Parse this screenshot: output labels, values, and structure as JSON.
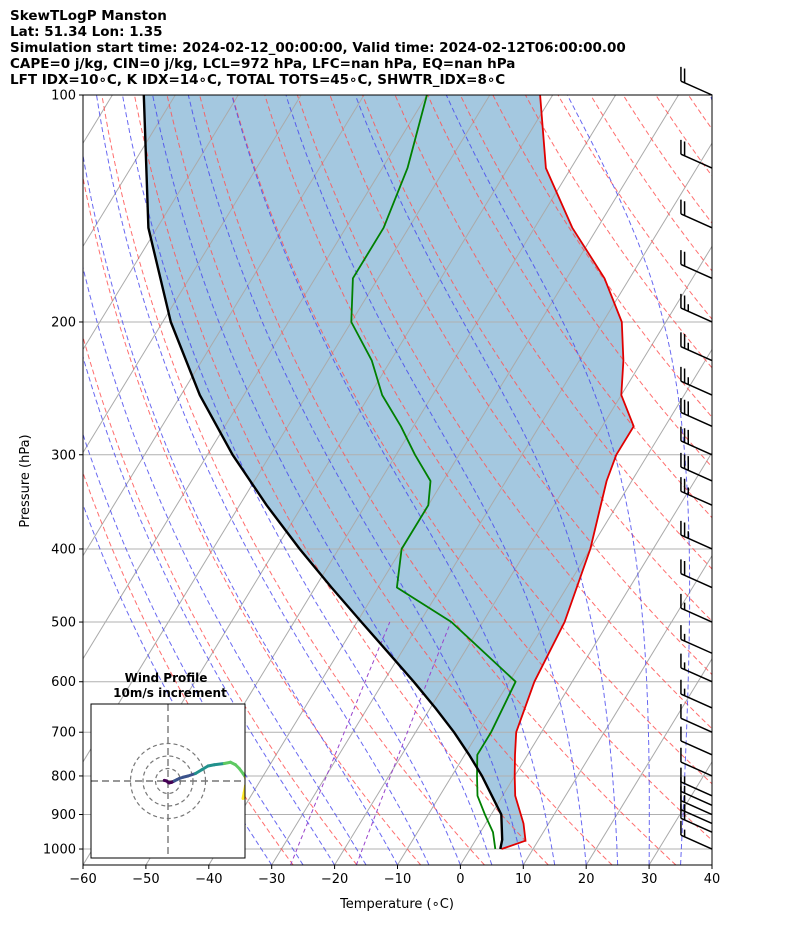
{
  "header": {
    "line1": "SkewTLogP Manston",
    "line2": "Lat: 51.34   Lon: 1.35",
    "line3": "Simulation start time: 2024-02-12_00:00:00, Valid time: 2024-02-12T06:00:00.00",
    "line4": "CAPE=0 j/kg, CIN=0 j/kg, LCL=972 hPa, LFC=nan hPa, EQ=nan hPa",
    "line5": "LFT IDX=10∘C, K IDX=14∘C, TOTAL TOTS=45∘C, SHWTR_IDX=8∘C"
  },
  "chart_data": {
    "type": "line",
    "subtype": "skew-t log-p",
    "xlabel": "Temperature (∘C)",
    "ylabel": "Pressure (hPa)",
    "xlim": [
      -60,
      40
    ],
    "ylim": [
      1050,
      100
    ],
    "y_scale": "log",
    "x_ticks": [
      "−60",
      "−50",
      "−40",
      "−30",
      "−20",
      "−10",
      "0",
      "10",
      "20",
      "30",
      "40"
    ],
    "y_ticks": [
      "100",
      "200",
      "300",
      "400",
      "500",
      "600",
      "700",
      "800",
      "900",
      "1000"
    ],
    "grid": true,
    "series": [
      {
        "role": "temperature",
        "color": "#e00000",
        "points": [
          [
            5,
            1000
          ],
          [
            8,
            975
          ],
          [
            6,
            925
          ],
          [
            2,
            850
          ],
          [
            0,
            800
          ],
          [
            -2,
            750
          ],
          [
            -4,
            700
          ],
          [
            -6,
            600
          ],
          [
            -7,
            500
          ],
          [
            -10,
            400
          ],
          [
            -14,
            325
          ],
          [
            -15,
            300
          ],
          [
            -15,
            275
          ],
          [
            -20,
            250
          ],
          [
            -23,
            225
          ],
          [
            -27,
            200
          ],
          [
            -34,
            175
          ],
          [
            -44,
            150
          ],
          [
            -54,
            125
          ],
          [
            -62,
            100
          ]
        ]
      },
      {
        "role": "dewpoint",
        "color": "#008000",
        "points": [
          [
            4,
            1000
          ],
          [
            2,
            950
          ],
          [
            -1,
            900
          ],
          [
            -4,
            850
          ],
          [
            -6,
            800
          ],
          [
            -8,
            750
          ],
          [
            -8,
            700
          ],
          [
            -9,
            600
          ],
          [
            -25,
            500
          ],
          [
            -37,
            450
          ],
          [
            -40,
            400
          ],
          [
            -40,
            350
          ],
          [
            -42,
            325
          ],
          [
            -47,
            300
          ],
          [
            -52,
            275
          ],
          [
            -58,
            250
          ],
          [
            -63,
            225
          ],
          [
            -70,
            200
          ],
          [
            -74,
            175
          ],
          [
            -74,
            150
          ],
          [
            -76,
            125
          ],
          [
            -80,
            100
          ]
        ]
      },
      {
        "role": "parcel",
        "color": "#000000",
        "points": [
          [
            4.8,
            1000
          ],
          [
            4.2,
            972
          ],
          [
            1.6,
            900
          ],
          [
            -1.7,
            850
          ],
          [
            -5.2,
            800
          ],
          [
            -9.3,
            750
          ],
          [
            -13.9,
            700
          ],
          [
            -19.2,
            650
          ],
          [
            -25.2,
            600
          ],
          [
            -31.9,
            550
          ],
          [
            -39.3,
            500
          ],
          [
            -47.4,
            450
          ],
          [
            -56.2,
            400
          ],
          [
            -65.7,
            350
          ],
          [
            -76.0,
            300
          ],
          [
            -87.0,
            250
          ],
          [
            -98.7,
            200
          ],
          [
            -111.4,
            150
          ],
          [
            -125.0,
            100
          ]
        ]
      }
    ],
    "wind_barbs": [
      {
        "p": 100,
        "kt": 20
      },
      {
        "p": 125,
        "kt": 20
      },
      {
        "p": 150,
        "kt": 20
      },
      {
        "p": 175,
        "kt": 20
      },
      {
        "p": 200,
        "kt": 25
      },
      {
        "p": 225,
        "kt": 25
      },
      {
        "p": 250,
        "kt": 25
      },
      {
        "p": 275,
        "kt": 30
      },
      {
        "p": 300,
        "kt": 30
      },
      {
        "p": 325,
        "kt": 30
      },
      {
        "p": 350,
        "kt": 25
      },
      {
        "p": 400,
        "kt": 25
      },
      {
        "p": 450,
        "kt": 20
      },
      {
        "p": 500,
        "kt": 15
      },
      {
        "p": 550,
        "kt": 15
      },
      {
        "p": 600,
        "kt": 15
      },
      {
        "p": 650,
        "kt": 15
      },
      {
        "p": 700,
        "kt": 10
      },
      {
        "p": 750,
        "kt": 10
      },
      {
        "p": 800,
        "kt": 10
      },
      {
        "p": 850,
        "kt": 15
      },
      {
        "p": 875,
        "kt": 15
      },
      {
        "p": 900,
        "kt": 15
      },
      {
        "p": 925,
        "kt": 15
      },
      {
        "p": 950,
        "kt": 20
      },
      {
        "p": 1000,
        "kt": 15
      }
    ],
    "reference_lines": {
      "isotherms_color": "#aaaaaa",
      "dry_adiabats_color": "#ff5555",
      "moist_adiabats_color": "#4444ee",
      "mixing_ratio_color": "#9944cc",
      "cape_fill_color": "#a4c8e0"
    },
    "inset": {
      "title_line1": "Wind Profile",
      "title_line2": "10m/s increment",
      "type": "hodograph",
      "ring_spacing_mps": 10,
      "points": [
        [
          -3,
          0.5
        ],
        [
          -1,
          0
        ],
        [
          0,
          -1
        ],
        [
          1,
          -1.5
        ],
        [
          3,
          -1
        ],
        [
          5,
          0
        ],
        [
          7,
          1
        ],
        [
          9,
          2
        ],
        [
          12,
          3
        ],
        [
          16,
          4
        ],
        [
          22,
          6
        ],
        [
          27,
          9
        ],
        [
          32,
          12
        ],
        [
          37,
          13
        ],
        [
          45,
          14
        ],
        [
          50,
          15
        ],
        [
          54,
          13
        ],
        [
          57,
          10
        ],
        [
          60,
          6
        ],
        [
          62,
          3
        ],
        [
          63,
          -1
        ],
        [
          62,
          -4
        ],
        [
          61,
          -9
        ],
        [
          60,
          -14
        ]
      ],
      "colormap": [
        "#440154",
        "#3b528b",
        "#21918c",
        "#5ec962",
        "#fde725"
      ]
    }
  }
}
